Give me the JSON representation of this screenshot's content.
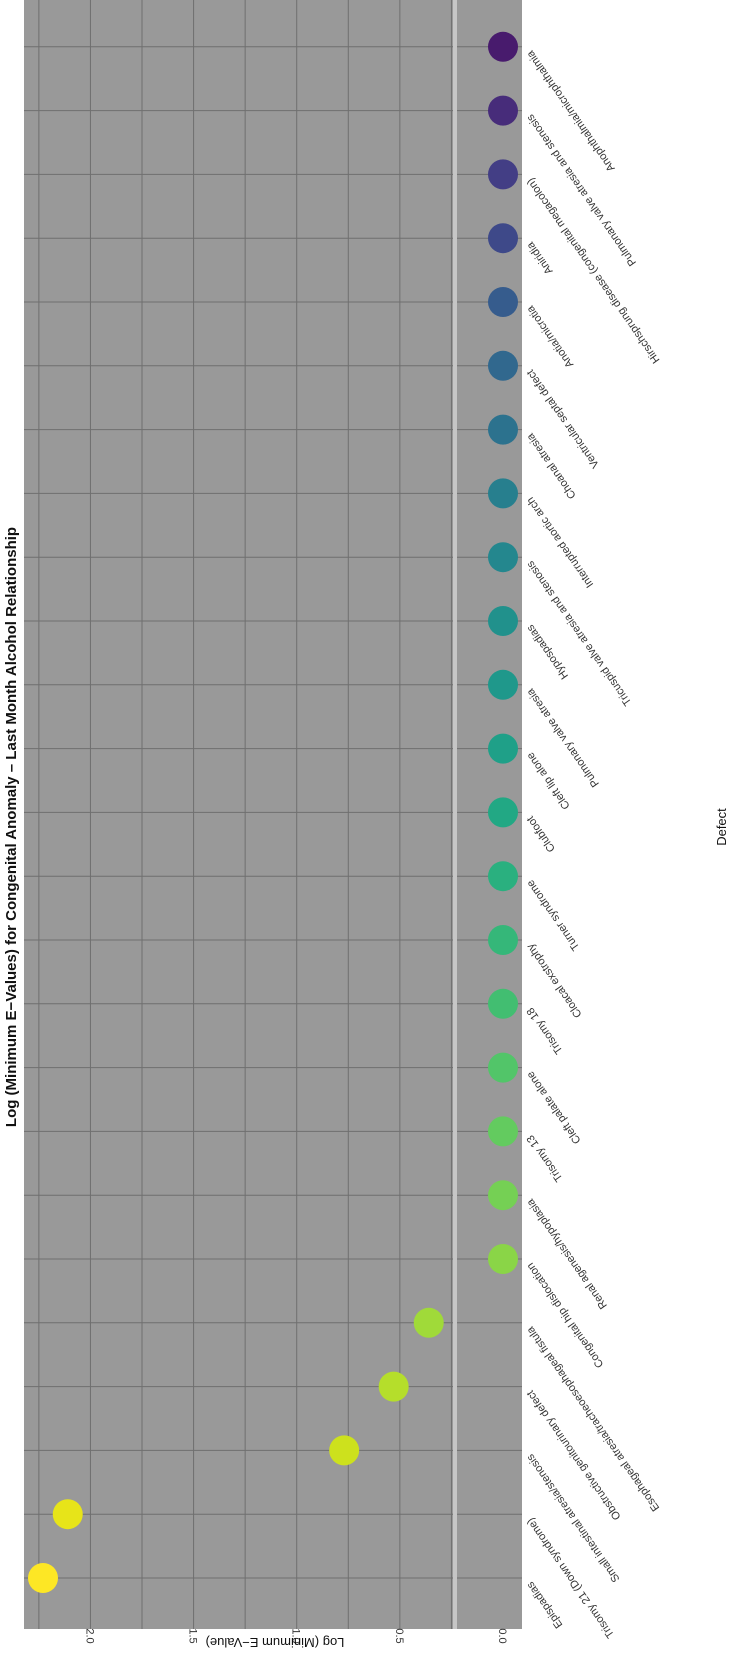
{
  "chart_data": {
    "type": "scatter",
    "title": "Log (Minimum E−Values) for Congenital Anomaly – Last Month Alcohol Relationship",
    "xlabel": "Defect",
    "ylabel": "Log (Minimum E−Value)",
    "ylim": [
      0,
      2.3
    ],
    "yticks": [
      "0.0",
      "0.5",
      "1.0",
      "1.5",
      "2.0"
    ],
    "reference_line": 0,
    "grid": true,
    "panel_background": "#999999",
    "colormap": "viridis",
    "categories": [
      "Epispadias",
      "Trisomy 21 (Down syndrome)",
      "Small intestinal atresia/stenosis",
      "Obstructive genitourinary defect",
      "Esophageal atresia/tracheoesophageal fistula",
      "Congenital hip dislocation",
      "Renal agenesis/hypoplasia",
      "Trisomy 13",
      "Cleft palate alone",
      "Trisomy 18",
      "Cloacal exstrophy",
      "Turner syndrome",
      "Clubfoot",
      "Cleft lip alone",
      "Pulmonary valve atresia",
      "Hypospadias",
      "Tricuspid valve atresia and stenosis",
      "Interrupted aortic arch",
      "Choanal atresia",
      "Ventricular septal defect",
      "Anotia/microtia",
      "Aniridia",
      "Hirschsprung disease (congenital megacolon)",
      "Pulmonary valve atresia and stenosis",
      "Anophthalmia/microphthalmia"
    ],
    "values": [
      2.23,
      2.11,
      0.77,
      0.53,
      0.36,
      0,
      0,
      0,
      0,
      0,
      0,
      0,
      0,
      0,
      0,
      0,
      0,
      0,
      0,
      0,
      0,
      0,
      0,
      0,
      0
    ],
    "colors": [
      "#fde725",
      "#e7e419",
      "#cde11d",
      "#b5de2b",
      "#a0da39",
      "#8ad547",
      "#75d054",
      "#63cb5f",
      "#52c569",
      "#42be71",
      "#35b779",
      "#2ab07f",
      "#22a884",
      "#1fa088",
      "#1f988b",
      "#21918c",
      "#24878e",
      "#277f8e",
      "#2c728e",
      "#31688e",
      "#365c8d",
      "#3e4989",
      "#433e85",
      "#472c7a",
      "#481b6d"
    ]
  }
}
